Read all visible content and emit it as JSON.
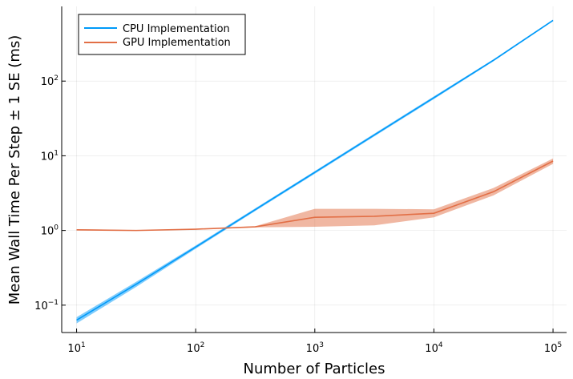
{
  "chart_data": {
    "type": "line",
    "title": "",
    "xlabel": "Number of Particles",
    "ylabel": "Mean Wall Time Per Step ± 1 SE (ms)",
    "xscale": "log",
    "yscale": "log",
    "xlim": [
      7.5,
      130000
    ],
    "ylim": [
      0.043,
      1000
    ],
    "grid": true,
    "legend": "top-left",
    "xticks": [
      {
        "value": 10,
        "base": "10",
        "exp": "1"
      },
      {
        "value": 100,
        "base": "10",
        "exp": "2"
      },
      {
        "value": 1000,
        "base": "10",
        "exp": "3"
      },
      {
        "value": 10000,
        "base": "10",
        "exp": "4"
      },
      {
        "value": 100000,
        "base": "10",
        "exp": "5"
      }
    ],
    "yticks": [
      {
        "value": 0.1,
        "base": "10",
        "exp": "−1"
      },
      {
        "value": 1,
        "base": "10",
        "exp": "0"
      },
      {
        "value": 10,
        "base": "10",
        "exp": "1"
      },
      {
        "value": 100,
        "base": "10",
        "exp": "2"
      }
    ],
    "series": [
      {
        "name": "CPU Implementation",
        "color": "#009af9",
        "x": [
          10,
          31.6,
          100,
          316,
          1000,
          3162,
          10000,
          31623,
          100000
        ],
        "y": [
          0.063,
          0.19,
          0.6,
          1.9,
          6.0,
          19.0,
          60.0,
          190.0,
          650.0
        ],
        "lower": [
          0.057,
          0.175,
          0.57,
          1.82,
          5.75,
          18.2,
          57.5,
          184.0,
          635.0
        ],
        "upper": [
          0.069,
          0.205,
          0.63,
          1.98,
          6.25,
          19.8,
          62.5,
          196.0,
          665.0
        ]
      },
      {
        "name": "GPU Implementation",
        "color": "#e26f46",
        "x": [
          10,
          31.6,
          100,
          316,
          1000,
          3162,
          10000,
          31623,
          100000
        ],
        "y": [
          1.02,
          1.0,
          1.04,
          1.12,
          1.5,
          1.55,
          1.7,
          3.3,
          8.5
        ],
        "lower": [
          1.0,
          0.99,
          1.03,
          1.1,
          1.12,
          1.17,
          1.5,
          2.95,
          7.8
        ],
        "upper": [
          1.04,
          1.01,
          1.05,
          1.14,
          1.95,
          1.95,
          1.92,
          3.7,
          9.2
        ]
      }
    ]
  }
}
